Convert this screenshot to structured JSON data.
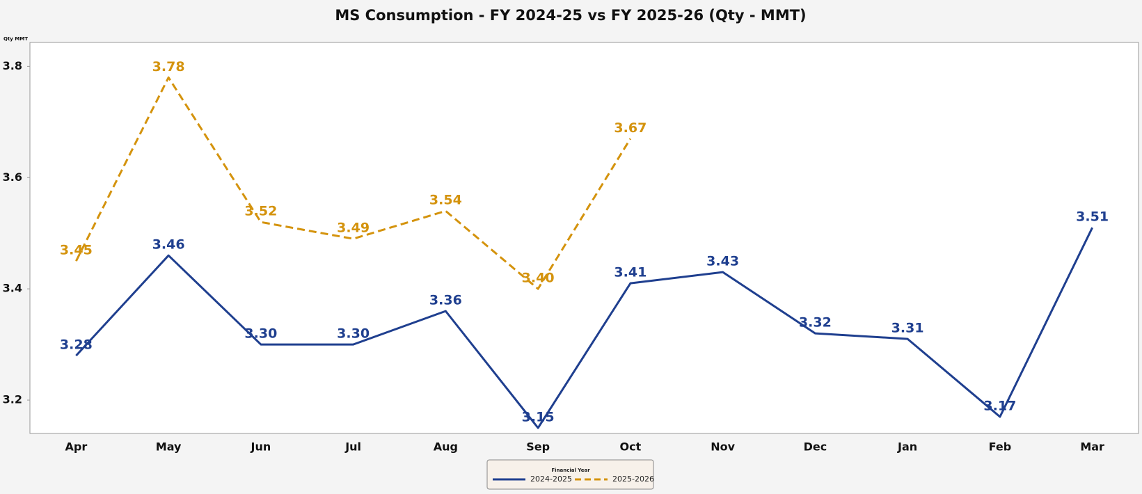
{
  "chart_data": {
    "type": "line",
    "title": "MS Consumption - FY 2024-25 vs FY 2025-26 (Qty - MMT)",
    "y_label": "Qty MMT",
    "legend_title": "Financial Year",
    "legend": "bottom",
    "grid": false,
    "categories": [
      "Apr",
      "May",
      "Jun",
      "Jul",
      "Aug",
      "Sep",
      "Oct",
      "Nov",
      "Dec",
      "Jan",
      "Feb",
      "Mar"
    ],
    "series": [
      {
        "name": "2024-2025",
        "color": "#1f3f8f",
        "dashed": false,
        "values": [
          3.28,
          3.46,
          3.3,
          3.3,
          3.36,
          3.15,
          3.41,
          3.43,
          3.32,
          3.31,
          3.17,
          3.51
        ],
        "value_labels": [
          "3.28",
          "3.46",
          "3.30",
          "3.30",
          "3.36",
          "3.15",
          "3.41",
          "3.43",
          "3.32",
          "3.31",
          "3.17",
          "3.51"
        ]
      },
      {
        "name": "2025-2026",
        "color": "#d4930d",
        "dashed": true,
        "values": [
          3.45,
          3.78,
          3.52,
          3.49,
          3.54,
          3.4,
          3.67,
          null,
          null,
          null,
          null,
          null
        ],
        "value_labels": [
          "3.45",
          "3.78",
          "3.52",
          "3.49",
          "3.54",
          "3.40",
          "3.67",
          null,
          null,
          null,
          null,
          null
        ]
      }
    ],
    "ylim": [
      3.14,
      3.843
    ],
    "yticks": [
      {
        "value": 3.2,
        "label": "3.2"
      },
      {
        "value": 3.4,
        "label": "3.4"
      },
      {
        "value": 3.6,
        "label": "3.6"
      },
      {
        "value": 3.8,
        "label": "3.8"
      }
    ]
  }
}
